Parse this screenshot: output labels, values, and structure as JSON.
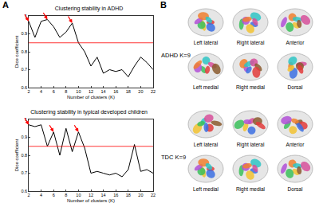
{
  "chart_data": [
    {
      "type": "line",
      "title": "Clustering stability in ADHD",
      "x_label": "Number of clusters (K)",
      "y_label": "Dice coefficient",
      "x": [
        2,
        3,
        4,
        5,
        6,
        7,
        8,
        9,
        10,
        11,
        12,
        13,
        14,
        15,
        16,
        17,
        18,
        19,
        20,
        21,
        22
      ],
      "series": [
        {
          "color": "#000000",
          "values": [
            0.97,
            0.88,
            0.97,
            0.98,
            0.94,
            0.88,
            0.91,
            0.96,
            0.85,
            0.8,
            0.72,
            0.77,
            0.68,
            0.7,
            0.69,
            0.7,
            0.66,
            0.72,
            0.77,
            0.74,
            0.7
          ]
        }
      ],
      "xlim": [
        2,
        22
      ],
      "xticks": [
        2,
        4,
        6,
        8,
        10,
        12,
        14,
        16,
        18,
        20,
        22
      ],
      "ylim": [
        0.6,
        1
      ],
      "yticks": [
        0.6,
        0.7,
        0.8,
        0.9,
        1
      ],
      "hline": {
        "value": 0.85,
        "color": "#ff0000"
      },
      "arrows": {
        "x": [
          2,
          5,
          9
        ],
        "color": "#ff0000"
      }
    },
    {
      "type": "line",
      "title": "Clustering stability in typical developed children",
      "x_label": "Number of clusters (K)",
      "y_label": "Dice coefficient",
      "x": [
        2,
        3,
        4,
        5,
        6,
        7,
        8,
        9,
        10,
        11,
        12,
        13,
        14,
        15,
        16,
        17,
        18,
        19,
        20,
        21,
        22
      ],
      "series": [
        {
          "color": "#000000",
          "values": [
            0.97,
            0.96,
            0.97,
            0.85,
            0.93,
            0.8,
            0.95,
            0.82,
            0.93,
            0.84,
            0.7,
            0.71,
            0.7,
            0.69,
            0.7,
            0.68,
            0.72,
            0.86,
            0.71,
            0.72,
            0.7
          ]
        }
      ],
      "xlim": [
        2,
        22
      ],
      "xticks": [
        2,
        4,
        6,
        8,
        10,
        12,
        14,
        16,
        18,
        20,
        22
      ],
      "ylim": [
        0.6,
        1
      ],
      "yticks": [
        0.6,
        0.7,
        0.8,
        0.9,
        1
      ],
      "hline": {
        "value": 0.85,
        "color": "#ff0000"
      },
      "arrows": {
        "x": [
          2,
          6,
          10
        ],
        "color": "#ff0000"
      }
    }
  ],
  "panel_labels": [
    "A",
    "B"
  ],
  "brain_panel": {
    "groups": [
      {
        "label": "ADHD K=9",
        "views": [
          [
            "Left lateral",
            "Right  lateral",
            "Anterior"
          ],
          [
            "Left medial",
            "Right medial",
            "Dorsal"
          ]
        ]
      },
      {
        "label": "TDC K=9",
        "views": [
          [
            "Left lateral",
            "Right lateral",
            "Anterior"
          ],
          [
            "Left medial",
            "Right medial",
            "Dorsal"
          ]
        ]
      }
    ]
  }
}
